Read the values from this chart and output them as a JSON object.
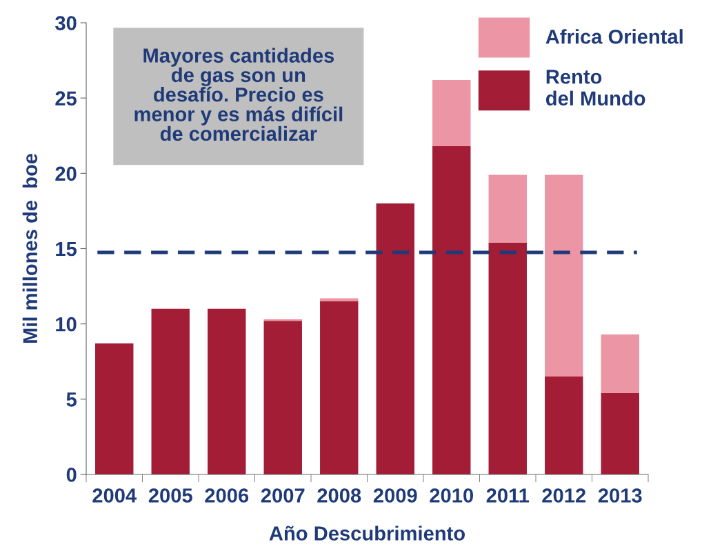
{
  "chart_data": {
    "type": "bar",
    "stacked": true,
    "xlabel": "Año Descubrimiento",
    "ylabel": "Mil millones de  boe",
    "categories": [
      "2004",
      "2005",
      "2006",
      "2007",
      "2008",
      "2009",
      "2010",
      "2011",
      "2012",
      "2013"
    ],
    "series": [
      {
        "name": "Rento\ndel Mundo",
        "color": "#a31d37",
        "values": [
          8.7,
          11.0,
          11.0,
          10.2,
          11.5,
          18.0,
          21.8,
          15.4,
          6.5,
          5.4
        ]
      },
      {
        "name": "Africa Oriental",
        "color": "#ec95a4",
        "values": [
          0,
          0,
          0,
          0.1,
          0.2,
          0,
          4.4,
          4.5,
          13.4,
          3.9
        ]
      }
    ],
    "ylim": [
      0,
      30
    ],
    "yticks": [
      0,
      5,
      10,
      15,
      20,
      25,
      30
    ],
    "ref_lines": [
      {
        "axis": "y",
        "value": 14.75,
        "color": "#1f3a78",
        "line_style": "dashed"
      }
    ],
    "annotations": [
      "Mayores cantidades\nde gas son un\ndesafío. Precio es\nmenor y es más difícil\nde comercializar"
    ],
    "legend": "top right",
    "grid": false
  }
}
